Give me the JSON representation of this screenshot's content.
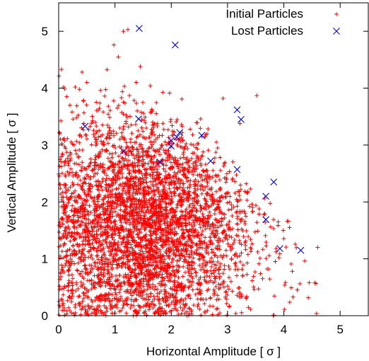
{
  "chart_data": {
    "type": "scatter",
    "xlabel": "Horizontal Amplitude [ σ ]",
    "ylabel": "Vertical Amplitude [ σ ]",
    "xlim": [
      0,
      5.5
    ],
    "ylim": [
      0,
      5.5
    ],
    "x_ticks": [
      0,
      1,
      2,
      3,
      4,
      5
    ],
    "y_ticks": [
      0,
      1,
      2,
      3,
      4,
      5
    ],
    "x_tick_labels": [
      "0",
      "1",
      "2",
      "3",
      "4",
      "5"
    ],
    "y_tick_labels": [
      "0",
      "1",
      "2",
      "3",
      "4",
      "5"
    ],
    "legend_position": "top-right",
    "grid": false,
    "series": [
      {
        "name": "Initial Particles",
        "marker": "plus",
        "color": "#ff0000",
        "approx_count": 4000,
        "distribution": "dense cloud concentrated around x≈1.5, y≈1.6; extends to x≈4.6 and y≈5.0",
        "points": [
          [
            1.15,
            5.0
          ],
          [
            1.23,
            5.03
          ],
          [
            0.5,
            4.1
          ],
          [
            0.05,
            4.33
          ],
          [
            0.98,
            4.76
          ],
          [
            1.45,
            4.38
          ],
          [
            1.06,
            4.55
          ],
          [
            4.6,
            1.2
          ],
          [
            4.45,
            0.58
          ],
          [
            4.55,
            0.58
          ],
          [
            4.15,
            0.78
          ],
          [
            3.52,
            3.87
          ],
          [
            3.22,
            3.38
          ],
          [
            2.92,
            3.82
          ],
          [
            0.1,
            0.1
          ],
          [
            0.3,
            0.05
          ],
          [
            3.9,
            1.65
          ],
          [
            4.1,
            1.55
          ],
          [
            2.8,
            3.05
          ],
          [
            0.2,
            3.7
          ]
        ]
      },
      {
        "name": "Lost Particles",
        "marker": "cross",
        "color": "#0000cc",
        "points": [
          [
            1.43,
            5.05
          ],
          [
            2.07,
            4.76
          ],
          [
            3.17,
            3.62
          ],
          [
            3.24,
            3.45
          ],
          [
            1.42,
            3.46
          ],
          [
            0.47,
            3.33
          ],
          [
            2.15,
            3.22
          ],
          [
            2.1,
            3.14
          ],
          [
            2.54,
            3.17
          ],
          [
            2.0,
            3.08
          ],
          [
            2.0,
            2.98
          ],
          [
            1.15,
            2.89
          ],
          [
            1.8,
            2.7
          ],
          [
            2.7,
            2.72
          ],
          [
            3.17,
            2.57
          ],
          [
            3.82,
            2.35
          ],
          [
            3.68,
            2.1
          ],
          [
            3.68,
            1.69
          ],
          [
            3.93,
            1.18
          ],
          [
            4.3,
            1.15
          ]
        ]
      }
    ]
  }
}
